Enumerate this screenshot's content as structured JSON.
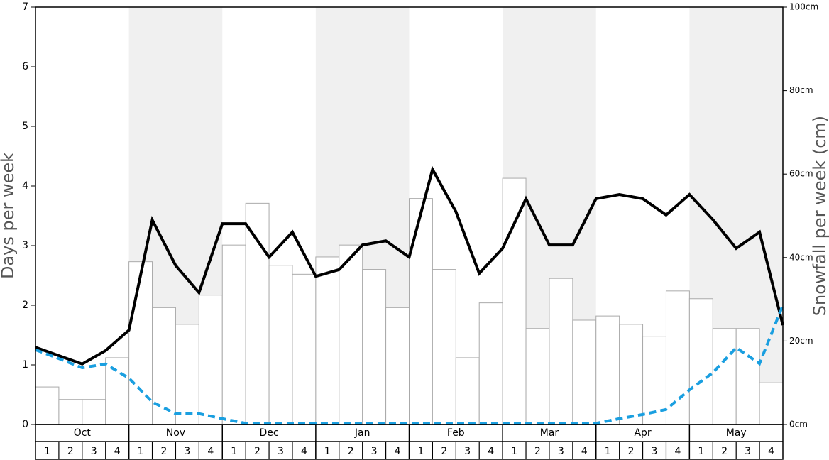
{
  "chart_data": {
    "type": "bar",
    "ylabel": "Days per week",
    "y2label": "Snowfall per week (cm)",
    "months": [
      "Oct",
      "Nov",
      "Dec",
      "Jan",
      "Feb",
      "Mar",
      "Apr",
      "May"
    ],
    "categories": [
      "1",
      "2",
      "3",
      "4",
      "1",
      "2",
      "3",
      "4",
      "1",
      "2",
      "3",
      "4",
      "1",
      "2",
      "3",
      "4",
      "1",
      "2",
      "3",
      "4",
      "1",
      "2",
      "3",
      "4",
      "1",
      "2",
      "3",
      "4",
      "1",
      "2",
      "3",
      "4"
    ],
    "ylim": [
      0,
      7
    ],
    "yticks": [
      0,
      1,
      2,
      3,
      4,
      5,
      6,
      7
    ],
    "y2lim": [
      0,
      100
    ],
    "y2ticks": [
      {
        "value": 0,
        "label": "0cm"
      },
      {
        "value": 20,
        "label": "20cm"
      },
      {
        "value": 40,
        "label": "40cm"
      },
      {
        "value": 60,
        "label": "60cm"
      },
      {
        "value": 80,
        "label": "80cm"
      },
      {
        "value": 100,
        "label": "100cm"
      }
    ],
    "xlim": [
      0,
      32
    ],
    "series": [
      {
        "type": "bar",
        "color": "#ffffff",
        "stroke": "#aaaaaa",
        "values": [
          0.63,
          0.42,
          0.42,
          1.12,
          2.73,
          1.96,
          1.68,
          2.17,
          3.01,
          3.71,
          2.67,
          2.52,
          2.81,
          3.01,
          2.6,
          1.96,
          3.79,
          2.6,
          1.12,
          2.04,
          4.13,
          1.61,
          2.45,
          1.75,
          1.82,
          1.68,
          1.48,
          2.24,
          2.11,
          1.61,
          1.61,
          0.7
        ]
      },
      {
        "type": "line",
        "axis": "y2",
        "color": "#000000",
        "dashed": false,
        "x": [
          0,
          1,
          2,
          3,
          4,
          5,
          6,
          7,
          8,
          9,
          10,
          11,
          12,
          13,
          14,
          15,
          16,
          17,
          18,
          19,
          20,
          21,
          22,
          23,
          24,
          25,
          26,
          27,
          28,
          29,
          30,
          31,
          32
        ],
        "values": [
          18.5,
          16.5,
          14.5,
          17.7,
          22.6,
          49.0,
          38.1,
          31.6,
          48.1,
          48.1,
          40.1,
          46.1,
          35.5,
          37.1,
          43.0,
          44.0,
          40.1,
          61.1,
          51.0,
          36.2,
          42.2,
          54.1,
          43.0,
          43.0,
          54.1,
          55.1,
          54.1,
          50.2,
          55.1,
          49.1,
          42.2,
          46.1,
          23.8
        ]
      },
      {
        "type": "line",
        "axis": "y2",
        "color": "#1a9fe0",
        "dashed": true,
        "x": [
          0,
          1,
          2,
          3,
          4,
          5,
          6,
          7,
          8,
          9,
          10,
          11,
          12,
          13,
          14,
          15,
          16,
          17,
          18,
          19,
          20,
          21,
          22,
          23,
          24,
          25,
          26,
          27,
          28,
          29,
          30,
          31,
          32
        ],
        "values": [
          17.9,
          15.8,
          13.6,
          14.5,
          11.1,
          5.4,
          2.6,
          2.6,
          1.4,
          0.3,
          0.3,
          0.3,
          0.3,
          0.3,
          0.3,
          0.3,
          0.3,
          0.3,
          0.3,
          0.3,
          0.3,
          0.3,
          0.3,
          0.3,
          0.3,
          1.4,
          2.4,
          3.6,
          8.3,
          12.4,
          18.4,
          14.6,
          28.6
        ]
      }
    ],
    "shade_color": "#f0f0f0"
  }
}
